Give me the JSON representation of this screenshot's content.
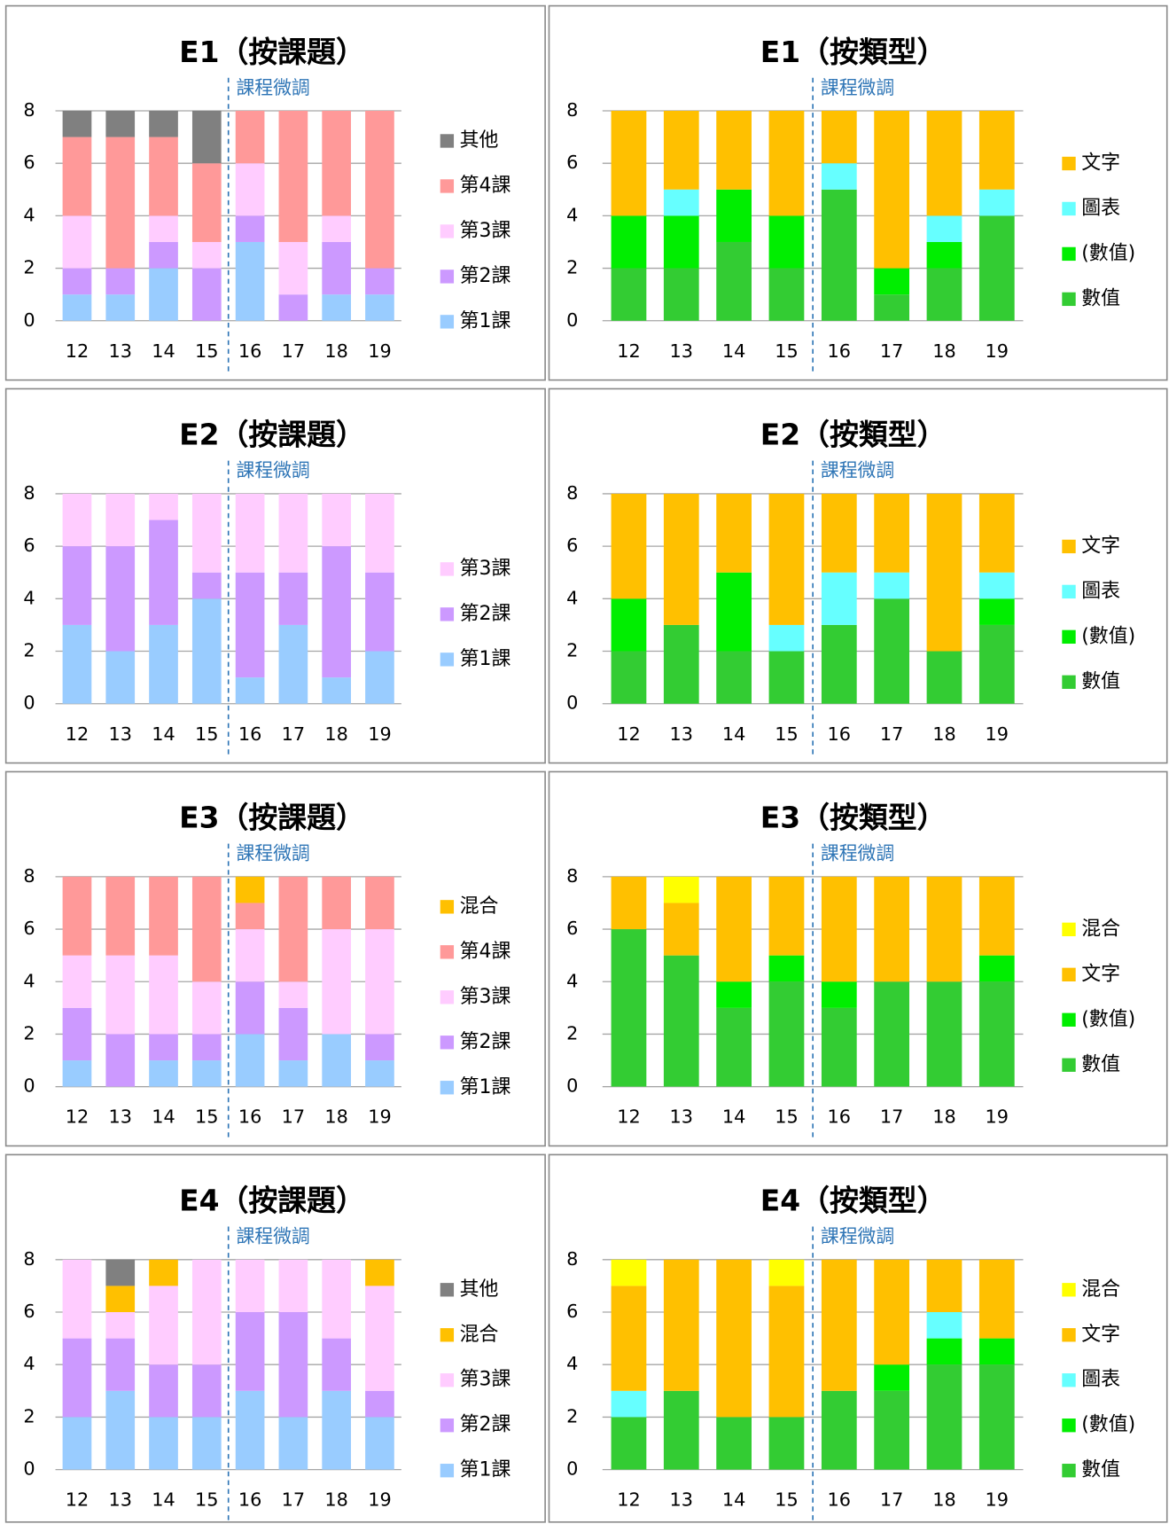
{
  "chart_data": [
    {
      "type": "bar",
      "stacked": true,
      "title": "E1（按課題）",
      "annotation": "課程微調",
      "categories": [
        "12",
        "13",
        "14",
        "15",
        "16",
        "17",
        "18",
        "19"
      ],
      "ylim": [
        0,
        8
      ],
      "yticks": [
        0,
        2,
        4,
        6,
        8
      ],
      "grid": true,
      "legend": "right",
      "series": [
        {
          "name": "第1課",
          "color": "#99ccff",
          "values": [
            1,
            1,
            2,
            0,
            3,
            0,
            1,
            1
          ]
        },
        {
          "name": "第2課",
          "color": "#cc99ff",
          "values": [
            1,
            1,
            1,
            2,
            1,
            1,
            2,
            1
          ]
        },
        {
          "name": "第3課",
          "color": "#ffccff",
          "values": [
            2,
            0,
            1,
            1,
            2,
            2,
            1,
            0
          ]
        },
        {
          "name": "第4課",
          "color": "#ff9999",
          "values": [
            3,
            5,
            3,
            3,
            2,
            5,
            4,
            6
          ]
        },
        {
          "name": "其他",
          "color": "#808080",
          "values": [
            1,
            1,
            1,
            2,
            0,
            0,
            0,
            0
          ]
        }
      ]
    },
    {
      "type": "bar",
      "stacked": true,
      "title": "E1（按類型）",
      "annotation": "課程微調",
      "categories": [
        "12",
        "13",
        "14",
        "15",
        "16",
        "17",
        "18",
        "19"
      ],
      "ylim": [
        0,
        8
      ],
      "yticks": [
        0,
        2,
        4,
        6,
        8
      ],
      "grid": true,
      "legend": "right",
      "series": [
        {
          "name": "數值",
          "color": "#33cc33",
          "values": [
            2,
            2,
            3,
            2,
            5,
            1,
            2,
            4
          ]
        },
        {
          "name": "(數值)",
          "color": "#00ee00",
          "values": [
            2,
            2,
            2,
            2,
            0,
            1,
            1,
            0
          ]
        },
        {
          "name": "圖表",
          "color": "#66ffff",
          "values": [
            0,
            1,
            0,
            0,
            1,
            0,
            1,
            1
          ]
        },
        {
          "name": "文字",
          "color": "#ffc000",
          "values": [
            4,
            3,
            3,
            4,
            2,
            6,
            4,
            3
          ]
        }
      ]
    },
    {
      "type": "bar",
      "stacked": true,
      "title": "E2（按課題）",
      "annotation": "課程微調",
      "categories": [
        "12",
        "13",
        "14",
        "15",
        "16",
        "17",
        "18",
        "19"
      ],
      "ylim": [
        0,
        8
      ],
      "yticks": [
        0,
        2,
        4,
        6,
        8
      ],
      "grid": true,
      "legend": "right",
      "series": [
        {
          "name": "第1課",
          "color": "#99ccff",
          "values": [
            3,
            2,
            3,
            4,
            1,
            3,
            1,
            2
          ]
        },
        {
          "name": "第2課",
          "color": "#cc99ff",
          "values": [
            3,
            4,
            4,
            1,
            4,
            2,
            5,
            3
          ]
        },
        {
          "name": "第3課",
          "color": "#ffccff",
          "values": [
            2,
            2,
            1,
            3,
            3,
            3,
            2,
            3
          ]
        }
      ]
    },
    {
      "type": "bar",
      "stacked": true,
      "title": "E2（按類型）",
      "annotation": "課程微調",
      "categories": [
        "12",
        "13",
        "14",
        "15",
        "16",
        "17",
        "18",
        "19"
      ],
      "ylim": [
        0,
        8
      ],
      "yticks": [
        0,
        2,
        4,
        6,
        8
      ],
      "grid": true,
      "legend": "right",
      "series": [
        {
          "name": "數值",
          "color": "#33cc33",
          "values": [
            2,
            3,
            2,
            2,
            3,
            4,
            2,
            3
          ]
        },
        {
          "name": "(數值)",
          "color": "#00ee00",
          "values": [
            2,
            0,
            3,
            0,
            0,
            0,
            0,
            1
          ]
        },
        {
          "name": "圖表",
          "color": "#66ffff",
          "values": [
            0,
            0,
            0,
            1,
            2,
            1,
            0,
            1
          ]
        },
        {
          "name": "文字",
          "color": "#ffc000",
          "values": [
            4,
            5,
            3,
            5,
            3,
            3,
            6,
            3
          ]
        }
      ]
    },
    {
      "type": "bar",
      "stacked": true,
      "title": "E3（按課題）",
      "annotation": "課程微調",
      "categories": [
        "12",
        "13",
        "14",
        "15",
        "16",
        "17",
        "18",
        "19"
      ],
      "ylim": [
        0,
        8
      ],
      "yticks": [
        0,
        2,
        4,
        6,
        8
      ],
      "grid": true,
      "legend": "right",
      "series": [
        {
          "name": "第1課",
          "color": "#99ccff",
          "values": [
            1,
            0,
            1,
            1,
            2,
            1,
            2,
            1
          ]
        },
        {
          "name": "第2課",
          "color": "#cc99ff",
          "values": [
            2,
            2,
            1,
            1,
            2,
            2,
            0,
            1
          ]
        },
        {
          "name": "第3課",
          "color": "#ffccff",
          "values": [
            2,
            3,
            3,
            2,
            2,
            1,
            4,
            4
          ]
        },
        {
          "name": "第4課",
          "color": "#ff9999",
          "values": [
            3,
            3,
            3,
            4,
            1,
            4,
            2,
            2
          ]
        },
        {
          "name": "混合",
          "color": "#ffc000",
          "values": [
            0,
            0,
            0,
            0,
            1,
            0,
            0,
            0
          ]
        }
      ]
    },
    {
      "type": "bar",
      "stacked": true,
      "title": "E3（按類型）",
      "annotation": "課程微調",
      "categories": [
        "12",
        "13",
        "14",
        "15",
        "16",
        "17",
        "18",
        "19"
      ],
      "ylim": [
        0,
        8
      ],
      "yticks": [
        0,
        2,
        4,
        6,
        8
      ],
      "grid": true,
      "legend": "right",
      "series": [
        {
          "name": "數值",
          "color": "#33cc33",
          "values": [
            6,
            5,
            3,
            4,
            3,
            4,
            4,
            4
          ]
        },
        {
          "name": "(數值)",
          "color": "#00ee00",
          "values": [
            0,
            0,
            1,
            1,
            1,
            0,
            0,
            1
          ]
        },
        {
          "name": "文字",
          "color": "#ffc000",
          "values": [
            2,
            2,
            4,
            3,
            4,
            4,
            4,
            3
          ]
        },
        {
          "name": "混合",
          "color": "#ffff00",
          "values": [
            0,
            1,
            0,
            0,
            0,
            0,
            0,
            0
          ]
        }
      ]
    },
    {
      "type": "bar",
      "stacked": true,
      "title": "E4（按課題）",
      "annotation": "課程微調",
      "categories": [
        "12",
        "13",
        "14",
        "15",
        "16",
        "17",
        "18",
        "19"
      ],
      "ylim": [
        0,
        8
      ],
      "yticks": [
        0,
        2,
        4,
        6,
        8
      ],
      "grid": true,
      "legend": "right",
      "series": [
        {
          "name": "第1課",
          "color": "#99ccff",
          "values": [
            2,
            3,
            2,
            2,
            3,
            2,
            3,
            2
          ]
        },
        {
          "name": "第2課",
          "color": "#cc99ff",
          "values": [
            3,
            2,
            2,
            2,
            3,
            4,
            2,
            1
          ]
        },
        {
          "name": "第3課",
          "color": "#ffccff",
          "values": [
            3,
            1,
            3,
            4,
            2,
            2,
            3,
            4
          ]
        },
        {
          "name": "混合",
          "color": "#ffc000",
          "values": [
            0,
            1,
            1,
            0,
            0,
            0,
            0,
            1
          ]
        },
        {
          "name": "其他",
          "color": "#808080",
          "values": [
            0,
            1,
            0,
            0,
            0,
            0,
            0,
            0
          ]
        }
      ]
    },
    {
      "type": "bar",
      "stacked": true,
      "title": "E4（按類型）",
      "annotation": "課程微調",
      "categories": [
        "12",
        "13",
        "14",
        "15",
        "16",
        "17",
        "18",
        "19"
      ],
      "ylim": [
        0,
        8
      ],
      "yticks": [
        0,
        2,
        4,
        6,
        8
      ],
      "grid": true,
      "legend": "right",
      "series": [
        {
          "name": "數值",
          "color": "#33cc33",
          "values": [
            2,
            3,
            2,
            2,
            3,
            3,
            4,
            4
          ]
        },
        {
          "name": "(數值)",
          "color": "#00ee00",
          "values": [
            0,
            0,
            0,
            0,
            0,
            1,
            1,
            1
          ]
        },
        {
          "name": "圖表",
          "color": "#66ffff",
          "values": [
            1,
            0,
            0,
            0,
            0,
            0,
            1,
            0
          ]
        },
        {
          "name": "文字",
          "color": "#ffc000",
          "values": [
            4,
            5,
            6,
            5,
            5,
            4,
            2,
            3
          ]
        },
        {
          "name": "混合",
          "color": "#ffff00",
          "values": [
            1,
            0,
            0,
            1,
            0,
            0,
            0,
            0
          ]
        }
      ]
    }
  ]
}
